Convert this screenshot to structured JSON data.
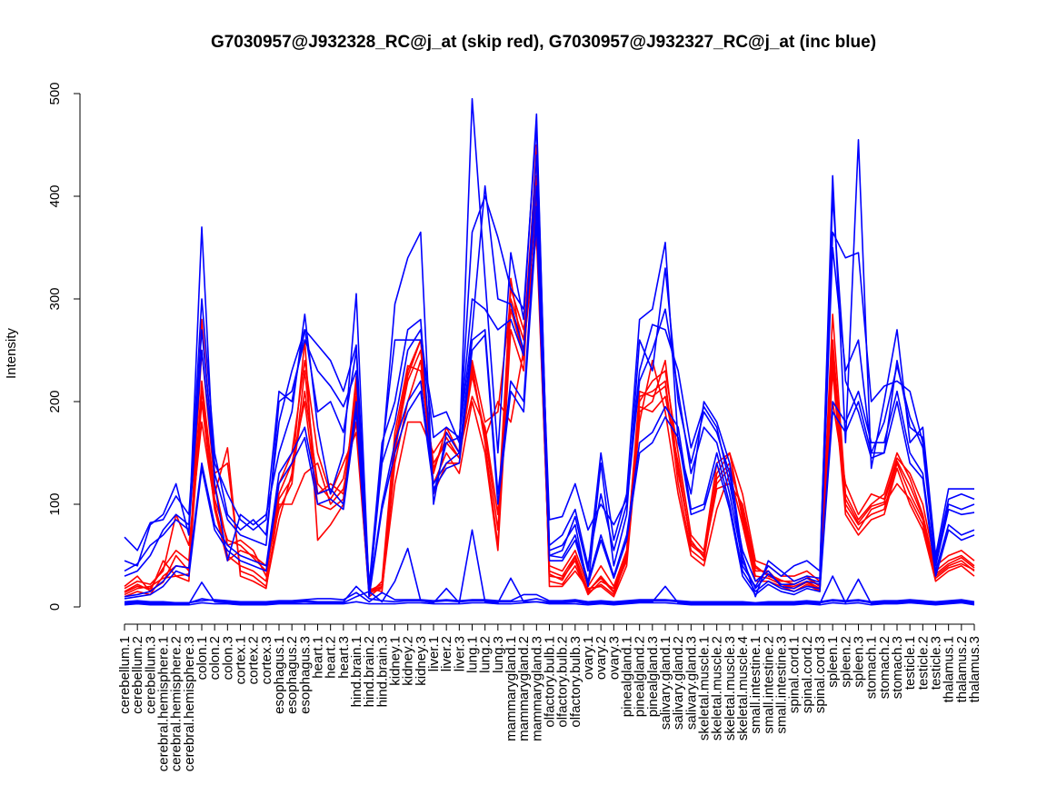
{
  "chart_data": {
    "type": "line",
    "title": "G7030957@J932328_RC@j_at (skip red), G7030957@J932327_RC@j_at (inc blue)",
    "xlabel": "",
    "ylabel": "Intensity",
    "ylim": [
      0,
      500
    ],
    "yticks": [
      0,
      100,
      200,
      300,
      400,
      500
    ],
    "grid": false,
    "legend": "none",
    "colors": {
      "skip": "#ff0000",
      "inc": "#0000ff",
      "axis": "#000000"
    },
    "categories": [
      "cerebellum.1",
      "cerebellum.2",
      "cerebellum.3",
      "cerebral.hemisphere.1",
      "cerebral.hemisphere.2",
      "cerebral.hemisphere.3",
      "colon.1",
      "colon.2",
      "colon.3",
      "cortex.1",
      "cortex.2",
      "cortex.3",
      "esophagus.1",
      "esophagus.2",
      "esophagus.3",
      "heart.1",
      "heart.2",
      "heart.3",
      "hind.brain.1",
      "hind.brain.2",
      "hind.brain.3",
      "kidney.1",
      "kidney.2",
      "kidney.3",
      "liver.1",
      "liver.2",
      "liver.3",
      "lung.1",
      "lung.2",
      "lung.3",
      "mammarygland.1",
      "mammarygland.2",
      "mammarygland.3",
      "olfactory.bulb.1",
      "olfactory.bulb.2",
      "olfactory.bulb.3",
      "ovary.1",
      "ovary.2",
      "ovary.3",
      "pinealgland.1",
      "pinealgland.2",
      "pinealgland.3",
      "salivary.gland.1",
      "salivary.gland.2",
      "salivary.gland.3",
      "skeletal.muscle.1",
      "skeletal.muscle.2",
      "skeletal.muscle.3",
      "skeletal.muscle.4",
      "small.intestine.1",
      "small.intestine.2",
      "small.intestine.3",
      "spinal.cord.1",
      "spinal.cord.2",
      "spinal.cord.3",
      "spleen.1",
      "spleen.2",
      "spleen.3",
      "stomach.1",
      "stomach.2",
      "stomach.3",
      "testicle.1",
      "testicle.2",
      "testicle.3",
      "thalamus.1",
      "thalamus.2",
      "thalamus.3"
    ],
    "series": [
      {
        "group": "skip",
        "values": [
          15,
          22,
          16,
          24,
          50,
          35,
          200,
          95,
          45,
          55,
          50,
          40,
          95,
          120,
          230,
          110,
          120,
          110,
          205,
          15,
          20,
          150,
          225,
          260,
          130,
          175,
          150,
          230,
          165,
          200,
          180,
          250,
          370,
          35,
          30,
          50,
          15,
          30,
          15,
          45,
          195,
          190,
          205,
          140,
          60,
          50,
          115,
          120,
          100,
          40,
          30,
          25,
          25,
          30,
          20,
          285,
          110,
          85,
          100,
          110,
          150,
          125,
          90,
          35,
          45,
          50,
          40
        ]
      },
      {
        "group": "skip",
        "values": [
          10,
          15,
          12,
          30,
          40,
          38,
          250,
          120,
          60,
          65,
          55,
          30,
          110,
          140,
          200,
          100,
          95,
          105,
          215,
          12,
          25,
          170,
          235,
          230,
          140,
          160,
          145,
          240,
          180,
          190,
          300,
          260,
          440,
          30,
          28,
          45,
          12,
          25,
          18,
          50,
          205,
          210,
          220,
          120,
          55,
          45,
          125,
          140,
          90,
          35,
          35,
          22,
          20,
          25,
          18,
          250,
          100,
          80,
          90,
          95,
          140,
          110,
          85,
          30,
          40,
          45,
          35
        ]
      },
      {
        "group": "skip",
        "values": [
          20,
          30,
          15,
          45,
          30,
          25,
          280,
          130,
          140,
          35,
          30,
          20,
          85,
          130,
          260,
          65,
          80,
          100,
          225,
          18,
          15,
          140,
          200,
          240,
          120,
          150,
          130,
          200,
          150,
          55,
          270,
          230,
          450,
          20,
          20,
          35,
          18,
          20,
          10,
          40,
          180,
          240,
          190,
          110,
          50,
          40,
          95,
          130,
          80,
          25,
          25,
          20,
          15,
          22,
          15,
          230,
          90,
          70,
          85,
          90,
          135,
          100,
          75,
          25,
          35,
          40,
          30
        ]
      },
      {
        "group": "skip",
        "values": [
          12,
          18,
          20,
          28,
          30,
          32,
          220,
          110,
          155,
          30,
          25,
          18,
          100,
          100,
          130,
          140,
          100,
          115,
          180,
          10,
          20,
          160,
          230,
          260,
          110,
          140,
          140,
          235,
          160,
          60,
          320,
          240,
          420,
          25,
          22,
          40,
          14,
          22,
          12,
          48,
          190,
          200,
          240,
          130,
          65,
          48,
          130,
          150,
          85,
          30,
          28,
          22,
          18,
          24,
          16,
          240,
          95,
          75,
          95,
          100,
          120,
          105,
          80,
          28,
          38,
          42,
          36
        ]
      },
      {
        "group": "skip",
        "values": [
          18,
          25,
          22,
          35,
          90,
          60,
          180,
          100,
          50,
          40,
          35,
          25,
          120,
          150,
          240,
          150,
          110,
          140,
          170,
          14,
          18,
          120,
          180,
          180,
          150,
          170,
          150,
          205,
          175,
          90,
          310,
          270,
          360,
          40,
          35,
          55,
          20,
          40,
          20,
          55,
          200,
          220,
          230,
          150,
          70,
          55,
          140,
          150,
          110,
          45,
          40,
          30,
          30,
          35,
          25,
          200,
          120,
          90,
          110,
          105,
          145,
          130,
          100,
          40,
          50,
          55,
          45
        ]
      },
      {
        "group": "skip",
        "values": [
          14,
          20,
          18,
          38,
          55,
          45,
          210,
          105,
          65,
          60,
          48,
          35,
          105,
          125,
          210,
          120,
          105,
          125,
          195,
          16,
          22,
          155,
          220,
          250,
          135,
          165,
          145,
          225,
          170,
          75,
          290,
          245,
          400,
          32,
          26,
          48,
          16,
          28,
          14,
          52,
          210,
          205,
          215,
          135,
          62,
          52,
          120,
          135,
          95,
          38,
          32,
          26,
          22,
          28,
          20,
          260,
          105,
          82,
          98,
          102,
          142,
          118,
          88,
          32,
          42,
          48,
          38
        ]
      },
      {
        "group": "inc",
        "values": [
          45,
          40,
          80,
          90,
          120,
          70,
          370,
          120,
          45,
          90,
          80,
          90,
          150,
          190,
          285,
          175,
          110,
          150,
          305,
          15,
          145,
          295,
          340,
          365,
          100,
          170,
          150,
          495,
          320,
          150,
          345,
          280,
          480,
          50,
          55,
          88,
          35,
          150,
          65,
          110,
          280,
          290,
          355,
          160,
          110,
          200,
          180,
          140,
          50,
          10,
          45,
          35,
          25,
          30,
          28,
          420,
          160,
          455,
          135,
          200,
          270,
          160,
          175,
          50,
          115,
          115,
          115
        ]
      },
      {
        "group": "inc",
        "values": [
          30,
          35,
          50,
          75,
          90,
          80,
          300,
          150,
          90,
          75,
          85,
          70,
          180,
          230,
          270,
          190,
          200,
          170,
          250,
          10,
          150,
          260,
          260,
          260,
          185,
          190,
          160,
          365,
          400,
          360,
          310,
          290,
          470,
          55,
          60,
          80,
          20,
          140,
          40,
          90,
          260,
          230,
          330,
          200,
          140,
          190,
          170,
          130,
          40,
          20,
          40,
          30,
          40,
          45,
          35,
          400,
          220,
          190,
          145,
          150,
          240,
          175,
          165,
          45,
          105,
          110,
          105
        ]
      },
      {
        "group": "inc",
        "values": [
          68,
          55,
          82,
          85,
          108,
          90,
          270,
          140,
          110,
          85,
          75,
          85,
          210,
          200,
          270,
          255,
          240,
          210,
          255,
          20,
          160,
          200,
          270,
          280,
          110,
          160,
          165,
          270,
          410,
          300,
          295,
          250,
          410,
          85,
          88,
          120,
          75,
          100,
          80,
          105,
          230,
          275,
          270,
          230,
          155,
          195,
          175,
          120,
          55,
          25,
          35,
          20,
          18,
          25,
          22,
          365,
          340,
          345,
          200,
          215,
          220,
          210,
          160,
          42,
          100,
          95,
          100
        ]
      },
      {
        "group": "inc",
        "values": [
          35,
          42,
          60,
          70,
          85,
          75,
          250,
          130,
          85,
          70,
          65,
          60,
          200,
          210,
          260,
          230,
          215,
          195,
          230,
          14,
          140,
          180,
          250,
          270,
          165,
          175,
          165,
          300,
          290,
          270,
          280,
          245,
          440,
          60,
          70,
          95,
          40,
          110,
          55,
          100,
          220,
          250,
          290,
          210,
          130,
          175,
          160,
          110,
          45,
          18,
          32,
          22,
          22,
          28,
          24,
          350,
          230,
          260,
          150,
          180,
          235,
          185,
          155,
          40,
          95,
          90,
          92
        ]
      },
      {
        "group": "inc",
        "values": [
          10,
          12,
          15,
          25,
          40,
          38,
          140,
          80,
          60,
          50,
          45,
          40,
          130,
          150,
          175,
          110,
          115,
          100,
          200,
          12,
          100,
          160,
          200,
          220,
          120,
          140,
          150,
          260,
          270,
          110,
          220,
          200,
          390,
          50,
          48,
          70,
          25,
          70,
          30,
          70,
          160,
          170,
          195,
          175,
          95,
          100,
          150,
          100,
          35,
          15,
          25,
          18,
          15,
          20,
          18,
          200,
          180,
          210,
          160,
          160,
          210,
          150,
          130,
          35,
          80,
          70,
          75
        ]
      },
      {
        "group": "inc",
        "values": [
          8,
          10,
          12,
          20,
          35,
          30,
          135,
          75,
          55,
          45,
          40,
          35,
          120,
          140,
          165,
          100,
          105,
          95,
          190,
          10,
          95,
          150,
          190,
          210,
          115,
          135,
          140,
          250,
          265,
          100,
          210,
          190,
          375,
          45,
          45,
          65,
          22,
          65,
          28,
          65,
          150,
          160,
          185,
          165,
          90,
          95,
          140,
          95,
          30,
          12,
          22,
          15,
          12,
          18,
          15,
          190,
          170,
          200,
          150,
          150,
          200,
          140,
          125,
          30,
          75,
          65,
          70
        ]
      },
      {
        "group": "inc",
        "values": [
          5,
          6,
          5,
          5,
          4,
          4,
          8,
          6,
          5,
          4,
          4,
          4,
          5,
          5,
          6,
          5,
          5,
          5,
          20,
          8,
          6,
          5,
          6,
          6,
          5,
          6,
          5,
          6,
          6,
          5,
          5,
          6,
          8,
          5,
          5,
          6,
          4,
          5,
          4,
          5,
          6,
          6,
          6,
          5,
          4,
          4,
          4,
          4,
          4,
          3,
          4,
          4,
          4,
          5,
          4,
          6,
          5,
          6,
          4,
          5,
          5,
          6,
          5,
          4,
          5,
          6,
          4
        ]
      },
      {
        "group": "inc",
        "values": [
          3,
          4,
          3,
          3,
          3,
          3,
          24,
          5,
          4,
          3,
          3,
          3,
          4,
          4,
          5,
          4,
          4,
          4,
          10,
          15,
          5,
          25,
          57,
          6,
          4,
          18,
          4,
          75,
          5,
          4,
          28,
          5,
          5,
          4,
          4,
          5,
          3,
          4,
          3,
          4,
          5,
          5,
          20,
          4,
          3,
          3,
          3,
          3,
          3,
          2,
          3,
          3,
          3,
          4,
          3,
          30,
          4,
          27,
          3,
          4,
          4,
          5,
          4,
          3,
          4,
          5,
          3
        ]
      },
      {
        "group": "inc",
        "values": [
          4,
          5,
          4,
          4,
          4,
          4,
          6,
          7,
          6,
          5,
          5,
          5,
          6,
          6,
          7,
          8,
          8,
          7,
          14,
          5,
          14,
          7,
          7,
          7,
          6,
          7,
          6,
          7,
          7,
          6,
          6,
          12,
          12,
          6,
          6,
          7,
          5,
          6,
          5,
          6,
          7,
          7,
          7,
          6,
          5,
          5,
          5,
          5,
          5,
          4,
          5,
          5,
          5,
          6,
          5,
          7,
          6,
          7,
          5,
          6,
          6,
          7,
          6,
          5,
          6,
          7,
          5
        ]
      },
      {
        "group": "inc",
        "values": [
          2,
          3,
          2,
          2,
          2,
          2,
          4,
          3,
          3,
          2,
          2,
          2,
          3,
          3,
          3,
          3,
          3,
          3,
          5,
          3,
          3,
          3,
          4,
          4,
          3,
          3,
          3,
          4,
          4,
          3,
          3,
          4,
          5,
          3,
          3,
          3,
          2,
          3,
          2,
          3,
          4,
          4,
          4,
          3,
          2,
          2,
          2,
          2,
          2,
          2,
          2,
          2,
          2,
          3,
          2,
          4,
          3,
          4,
          2,
          3,
          3,
          4,
          3,
          2,
          3,
          4,
          2
        ]
      }
    ]
  }
}
